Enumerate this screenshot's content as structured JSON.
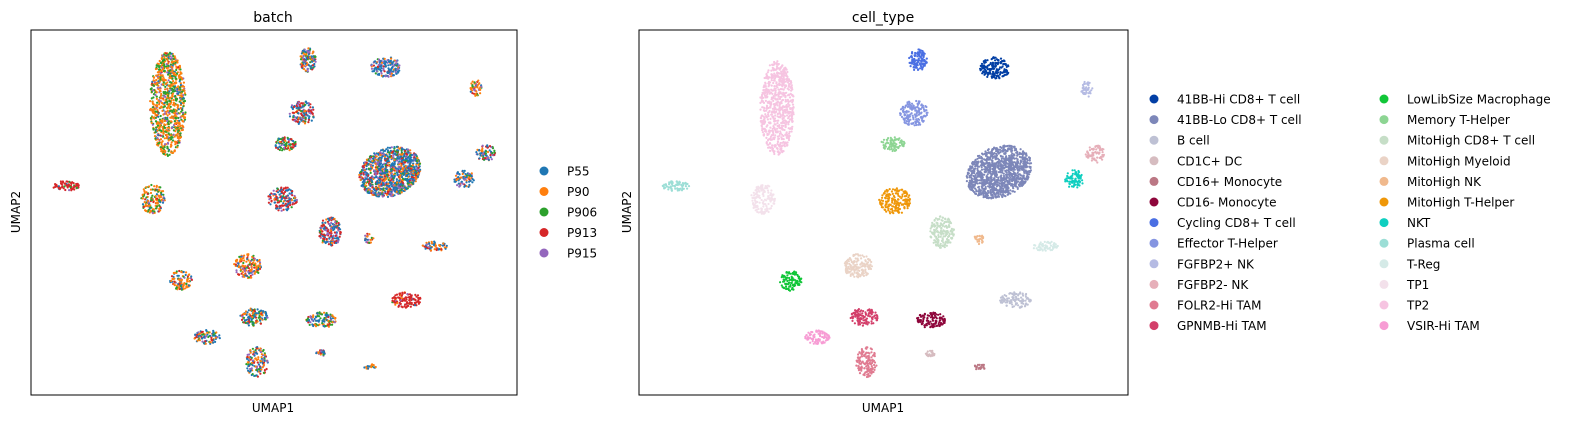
{
  "chart_data": [
    {
      "type": "scatter",
      "title": "batch",
      "xlabel": "UMAP1",
      "ylabel": "UMAP2",
      "grid": false,
      "legend_placement": "right",
      "legend": [
        {
          "label": "P55",
          "color": "#1f77b4"
        },
        {
          "label": "P90",
          "color": "#ff7f0e"
        },
        {
          "label": "P906",
          "color": "#2ca02c"
        },
        {
          "label": "P913",
          "color": "#d62728"
        },
        {
          "label": "P915",
          "color": "#9467bd"
        }
      ]
    },
    {
      "type": "scatter",
      "title": "cell_type",
      "xlabel": "UMAP1",
      "ylabel": "UMAP2",
      "grid": false,
      "legend_placement": "right",
      "legend": [
        {
          "label": "41BB-Hi CD8+ T cell",
          "color": "#023fa5"
        },
        {
          "label": "41BB-Lo CD8+ T cell",
          "color": "#7d87b9"
        },
        {
          "label": "B cell",
          "color": "#bec1d4"
        },
        {
          "label": "CD1C+ DC",
          "color": "#d6bcc0"
        },
        {
          "label": "CD16+ Monocyte",
          "color": "#bb7784"
        },
        {
          "label": "CD16- Monocyte",
          "color": "#8e063b"
        },
        {
          "label": "Cycling CD8+ T cell",
          "color": "#4a6fe3"
        },
        {
          "label": "Effector T-Helper",
          "color": "#8595e1"
        },
        {
          "label": "FGFBP2+ NK",
          "color": "#b5bbe3"
        },
        {
          "label": "FGFBP2- NK",
          "color": "#e6afb9"
        },
        {
          "label": "FOLR2-Hi TAM",
          "color": "#e07b91"
        },
        {
          "label": "GPNMB-Hi TAM",
          "color": "#d33f6a"
        },
        {
          "label": "LowLibSize Macrophage",
          "color": "#11c638"
        },
        {
          "label": "Memory T-Helper",
          "color": "#8dd593"
        },
        {
          "label": "MitoHigh CD8+ T cell",
          "color": "#c6dec7"
        },
        {
          "label": "MitoHigh Myeloid",
          "color": "#ead3c6"
        },
        {
          "label": "MitoHigh NK",
          "color": "#f0b98d"
        },
        {
          "label": "MitoHigh T-Helper",
          "color": "#ef9708"
        },
        {
          "label": "NKT",
          "color": "#0fcfc0"
        },
        {
          "label": "Plasma cell",
          "color": "#9cded6"
        },
        {
          "label": "T-Reg",
          "color": "#d5eae7"
        },
        {
          "label": "TP1",
          "color": "#f3e1eb"
        },
        {
          "label": "TP2",
          "color": "#f6c4e1"
        },
        {
          "label": "VSIR-Hi TAM",
          "color": "#f79cd4"
        }
      ]
    }
  ]
}
